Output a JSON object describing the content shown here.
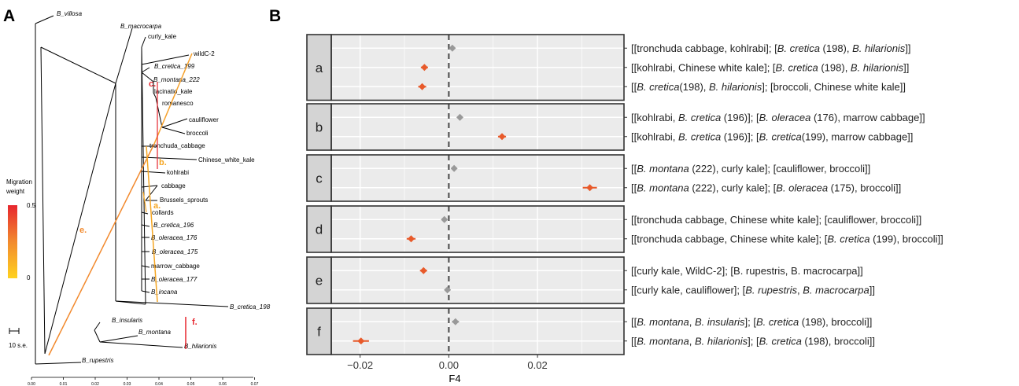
{
  "panel_a": {
    "letter": "A",
    "legend": {
      "title_line1": "Migration",
      "title_line2": "weight",
      "max_label": "0.5",
      "min_label": "0",
      "color_low": "#ffd21f",
      "color_mid": "#f28a2e",
      "color_high": "#e7262e"
    },
    "scale_bar_label": "10 s.e.",
    "taxa": [
      {
        "label": "B_villosa"
      },
      {
        "label": "B_macrocarpa"
      },
      {
        "label": "curly_kale"
      },
      {
        "label": "wildC-2"
      },
      {
        "label": "B_cretica_199"
      },
      {
        "label": "B_montana_222"
      },
      {
        "label": "lacinatio_kale"
      },
      {
        "label": "romanesco"
      },
      {
        "label": "cauliflower"
      },
      {
        "label": "broccoli"
      },
      {
        "label": "tronchuda_cabbage"
      },
      {
        "label": "Chinese_white_kale"
      },
      {
        "label": "kohlrabi"
      },
      {
        "label": "cabbage"
      },
      {
        "label": "Brussels_sprouts"
      },
      {
        "label": "collards"
      },
      {
        "label": "B_cretica_196"
      },
      {
        "label": "B_oleracea_176"
      },
      {
        "label": "B_oleracea_175"
      },
      {
        "label": "marrow_cabbage"
      },
      {
        "label": "B_oleracea_177"
      },
      {
        "label": "B_incana"
      },
      {
        "label": "B_cretica_198"
      },
      {
        "label": "B_insularis"
      },
      {
        "label": "B_montana"
      },
      {
        "label": "B_hilarionis"
      },
      {
        "label": "B_rupestris"
      }
    ],
    "migration_labels": [
      "a.",
      "b.",
      "c.",
      "e.",
      "f."
    ],
    "x_ticks": [
      "0.00",
      "0.01",
      "0.02",
      "0.03",
      "0.04",
      "0.05",
      "0.06",
      "0.07"
    ]
  },
  "chart_data": {
    "type": "scatter",
    "panel_letter": "B",
    "xlabel": "F4",
    "x_ticks": [
      -0.02,
      0.0,
      0.02
    ],
    "x_tick_labels": [
      "−0.02",
      "0.00",
      "0.02"
    ],
    "xlim": [
      -0.0265,
      0.0395
    ],
    "reference_line_x": 0,
    "colors": {
      "significant": "#e85a2a",
      "nonsignificant": "#999999"
    },
    "groups": [
      {
        "label": "a",
        "rows": [
          {
            "f4": 0.0008,
            "err": 0.0004,
            "significant": false,
            "parts": [
              [
                "[[tronchuda cabbage, kohlrabi]; [",
                false
              ],
              [
                "B. cretica",
                true
              ],
              [
                " (198), ",
                false
              ],
              [
                "B. hilarionis",
                true
              ],
              [
                "]]",
                false
              ]
            ]
          },
          {
            "f4": -0.0055,
            "err": 0.0008,
            "significant": true,
            "parts": [
              [
                "[[kohlrabi, Chinese white kale]; [",
                false
              ],
              [
                "B. cretica",
                true
              ],
              [
                " (198), ",
                false
              ],
              [
                "B. hilarionis",
                true
              ],
              [
                "]]",
                false
              ]
            ]
          },
          {
            "f4": -0.006,
            "err": 0.0009,
            "significant": true,
            "parts": [
              [
                "[[",
                false
              ],
              [
                "B. cretica",
                true
              ],
              [
                "(198), ",
                false
              ],
              [
                "B. hilarionis",
                true
              ],
              [
                "]; [broccoli, Chinese white kale]]",
                false
              ]
            ]
          }
        ]
      },
      {
        "label": "b",
        "rows": [
          {
            "f4": 0.0025,
            "err": 0.0006,
            "significant": false,
            "parts": [
              [
                "[[kohlrabi, ",
                false
              ],
              [
                "B. cretica",
                true
              ],
              [
                " (196)]; [",
                false
              ],
              [
                "B. oleracea",
                true
              ],
              [
                " (176), marrow cabbage]]",
                false
              ]
            ]
          },
          {
            "f4": 0.012,
            "err": 0.0009,
            "significant": true,
            "parts": [
              [
                "[[kohlrabi, ",
                false
              ],
              [
                "B. cretica",
                true
              ],
              [
                " (196)]; [",
                false
              ],
              [
                "B. cretica",
                true
              ],
              [
                "(199), marrow cabbage]]",
                false
              ]
            ]
          }
        ]
      },
      {
        "label": "c",
        "rows": [
          {
            "f4": 0.0012,
            "err": 0.0005,
            "significant": false,
            "parts": [
              [
                "[[",
                false
              ],
              [
                "B. montana",
                true
              ],
              [
                " (222), curly kale]; [cauliflower, broccoli]]",
                false
              ]
            ]
          },
          {
            "f4": 0.0318,
            "err": 0.0016,
            "significant": true,
            "parts": [
              [
                "[[",
                false
              ],
              [
                "B. montana",
                true
              ],
              [
                " (222), curly kale]; [",
                false
              ],
              [
                "B. oleracea",
                true
              ],
              [
                " (175), broccoli]]",
                false
              ]
            ]
          }
        ]
      },
      {
        "label": "d",
        "rows": [
          {
            "f4": -0.001,
            "err": 0.0004,
            "significant": false,
            "parts": [
              [
                "[[tronchuda cabbage, Chinese white kale]; [cauliflower, broccoli]]",
                false
              ]
            ]
          },
          {
            "f4": -0.0085,
            "err": 0.001,
            "significant": true,
            "parts": [
              [
                "[[tronchuda cabbage, Chinese white kale]; [",
                false
              ],
              [
                "B. cretica",
                true
              ],
              [
                " (199), broccoli]]",
                false
              ]
            ]
          }
        ]
      },
      {
        "label": "e",
        "rows": [
          {
            "f4": -0.0057,
            "err": 0.0008,
            "significant": true,
            "parts": [
              [
                "[[curly kale, WildC-2]; [B. rupestris, B. macrocarpa]]",
                false
              ]
            ]
          },
          {
            "f4": -0.0003,
            "err": 0.0005,
            "significant": false,
            "parts": [
              [
                "[[curly kale, cauliflower]; [",
                false
              ],
              [
                "B. rupestris",
                true
              ],
              [
                ", ",
                false
              ],
              [
                "B. macrocarpa",
                true
              ],
              [
                "]]",
                false
              ]
            ]
          }
        ]
      },
      {
        "label": "f",
        "rows": [
          {
            "f4": 0.0015,
            "err": 0.0008,
            "significant": false,
            "parts": [
              [
                "[[",
                false
              ],
              [
                "B. montana",
                true
              ],
              [
                ", ",
                false
              ],
              [
                "B. insularis",
                true
              ],
              [
                "]; [",
                false
              ],
              [
                "B. cretica",
                true
              ],
              [
                " (198), broccoli]]",
                false
              ]
            ]
          },
          {
            "f4": -0.0198,
            "err": 0.0018,
            "significant": true,
            "parts": [
              [
                "[[",
                false
              ],
              [
                "B. montana",
                true
              ],
              [
                ", ",
                false
              ],
              [
                "B. hilarionis",
                true
              ],
              [
                "]; [",
                false
              ],
              [
                "B. cretica",
                true
              ],
              [
                " (198), broccoli]]",
                false
              ]
            ]
          }
        ]
      }
    ]
  }
}
